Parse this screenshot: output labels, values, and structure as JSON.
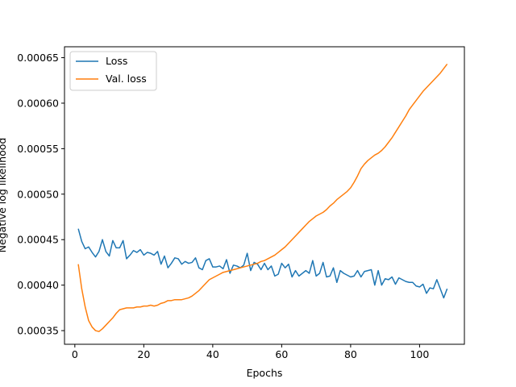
{
  "chart_data": {
    "type": "line",
    "xlabel": "Epochs",
    "ylabel": "Negative log likelihood",
    "xlim": [
      -3,
      113
    ],
    "ylim": [
      0.000335,
      0.000662
    ],
    "xticks": [
      0,
      20,
      40,
      60,
      80,
      100
    ],
    "yticks": [
      0.00035,
      0.0004,
      0.00045,
      0.0005,
      0.00055,
      0.0006,
      0.00065
    ],
    "ytick_labels": [
      "0.00035",
      "0.00040",
      "0.00045",
      "0.00050",
      "0.00055",
      "0.00060",
      "0.00065"
    ],
    "grid": false,
    "legend_position": "top-left",
    "colors": {
      "Loss": "#1f77b4",
      "Val. loss": "#ff7f0e"
    },
    "series": [
      {
        "name": "Loss",
        "x": [
          1,
          2,
          3,
          4,
          5,
          6,
          7,
          8,
          9,
          10,
          11,
          12,
          13,
          14,
          15,
          16,
          17,
          18,
          19,
          20,
          21,
          22,
          23,
          24,
          25,
          26,
          27,
          28,
          29,
          30,
          31,
          32,
          33,
          34,
          35,
          36,
          37,
          38,
          39,
          40,
          41,
          42,
          43,
          44,
          45,
          46,
          47,
          48,
          49,
          50,
          51,
          52,
          53,
          54,
          55,
          56,
          57,
          58,
          59,
          60,
          61,
          62,
          63,
          64,
          65,
          66,
          67,
          68,
          69,
          70,
          71,
          72,
          73,
          74,
          75,
          76,
          77,
          78,
          79,
          80,
          81,
          82,
          83,
          84,
          85,
          86,
          87,
          88,
          89,
          90,
          91,
          92,
          93,
          94,
          95,
          96,
          97,
          98,
          99,
          100,
          101,
          102,
          103,
          104,
          105,
          106,
          107,
          108
        ],
        "y": [
          0.000462,
          0.000448,
          0.00044,
          0.000442,
          0.000436,
          0.000431,
          0.000437,
          0.00045,
          0.000437,
          0.000432,
          0.000449,
          0.000441,
          0.000441,
          0.000449,
          0.000429,
          0.000433,
          0.000438,
          0.000436,
          0.000439,
          0.000433,
          0.000436,
          0.000435,
          0.000433,
          0.000437,
          0.000423,
          0.000432,
          0.000419,
          0.000424,
          0.00043,
          0.000429,
          0.000423,
          0.000426,
          0.000424,
          0.000425,
          0.00043,
          0.000419,
          0.000417,
          0.000427,
          0.000429,
          0.00042,
          0.00042,
          0.000421,
          0.000418,
          0.000428,
          0.000413,
          0.000422,
          0.000421,
          0.000419,
          0.000422,
          0.000435,
          0.000416,
          0.000425,
          0.000423,
          0.000417,
          0.000424,
          0.000417,
          0.000421,
          0.00041,
          0.000412,
          0.000424,
          0.000419,
          0.000423,
          0.000409,
          0.000416,
          0.00041,
          0.000413,
          0.000416,
          0.000413,
          0.000427,
          0.00041,
          0.000413,
          0.000425,
          0.000409,
          0.00041,
          0.000419,
          0.000403,
          0.000416,
          0.000413,
          0.000411,
          0.000409,
          0.00041,
          0.000416,
          0.000409,
          0.000415,
          0.000416,
          0.000417,
          0.0004,
          0.000416,
          0.0004,
          0.000407,
          0.000406,
          0.000409,
          0.000401,
          0.000408,
          0.000406,
          0.000404,
          0.000403,
          0.000403,
          0.000399,
          0.000398,
          0.000401,
          0.000391,
          0.000397,
          0.000396,
          0.000406,
          0.000396,
          0.000386,
          0.000396
        ]
      },
      {
        "name": "Val. loss",
        "x": [
          1,
          2,
          3,
          4,
          5,
          6,
          7,
          8,
          9,
          10,
          11,
          12,
          13,
          14,
          15,
          16,
          17,
          18,
          19,
          20,
          21,
          22,
          23,
          24,
          25,
          26,
          27,
          28,
          29,
          30,
          31,
          32,
          33,
          34,
          35,
          36,
          37,
          38,
          39,
          40,
          41,
          42,
          43,
          44,
          45,
          46,
          47,
          48,
          49,
          50,
          51,
          52,
          53,
          54,
          55,
          56,
          57,
          58,
          59,
          60,
          61,
          62,
          63,
          64,
          65,
          66,
          67,
          68,
          69,
          70,
          71,
          72,
          73,
          74,
          75,
          76,
          77,
          78,
          79,
          80,
          81,
          82,
          83,
          84,
          85,
          86,
          87,
          88,
          89,
          90,
          91,
          92,
          93,
          94,
          95,
          96,
          97,
          98,
          99,
          100,
          101,
          102,
          103,
          104,
          105,
          106,
          107,
          108
        ],
        "y": [
          0.000423,
          0.000396,
          0.000376,
          0.000361,
          0.000354,
          0.00035,
          0.000349,
          0.000352,
          0.000356,
          0.00036,
          0.000364,
          0.000369,
          0.000373,
          0.000374,
          0.000375,
          0.000375,
          0.000375,
          0.000376,
          0.000376,
          0.000377,
          0.000377,
          0.000378,
          0.000377,
          0.000378,
          0.00038,
          0.000381,
          0.000383,
          0.000383,
          0.000384,
          0.000384,
          0.000384,
          0.000385,
          0.000386,
          0.000388,
          0.000391,
          0.000394,
          0.000398,
          0.000402,
          0.000406,
          0.000408,
          0.00041,
          0.000412,
          0.000414,
          0.000415,
          0.000416,
          0.000417,
          0.000418,
          0.000419,
          0.00042,
          0.000421,
          0.000422,
          0.000423,
          0.000424,
          0.000426,
          0.000427,
          0.000429,
          0.000431,
          0.000433,
          0.000436,
          0.000439,
          0.000442,
          0.000446,
          0.00045,
          0.000454,
          0.000458,
          0.000462,
          0.000466,
          0.00047,
          0.000473,
          0.000476,
          0.000478,
          0.00048,
          0.000483,
          0.000487,
          0.00049,
          0.000494,
          0.000497,
          0.0005,
          0.000503,
          0.000507,
          0.000513,
          0.00052,
          0.000528,
          0.000533,
          0.000537,
          0.00054,
          0.000543,
          0.000545,
          0.000548,
          0.000552,
          0.000557,
          0.000562,
          0.000568,
          0.000574,
          0.00058,
          0.000586,
          0.000593,
          0.000598,
          0.000603,
          0.000608,
          0.000613,
          0.000617,
          0.000621,
          0.000625,
          0.000629,
          0.000633,
          0.000638,
          0.000643
        ]
      }
    ]
  }
}
